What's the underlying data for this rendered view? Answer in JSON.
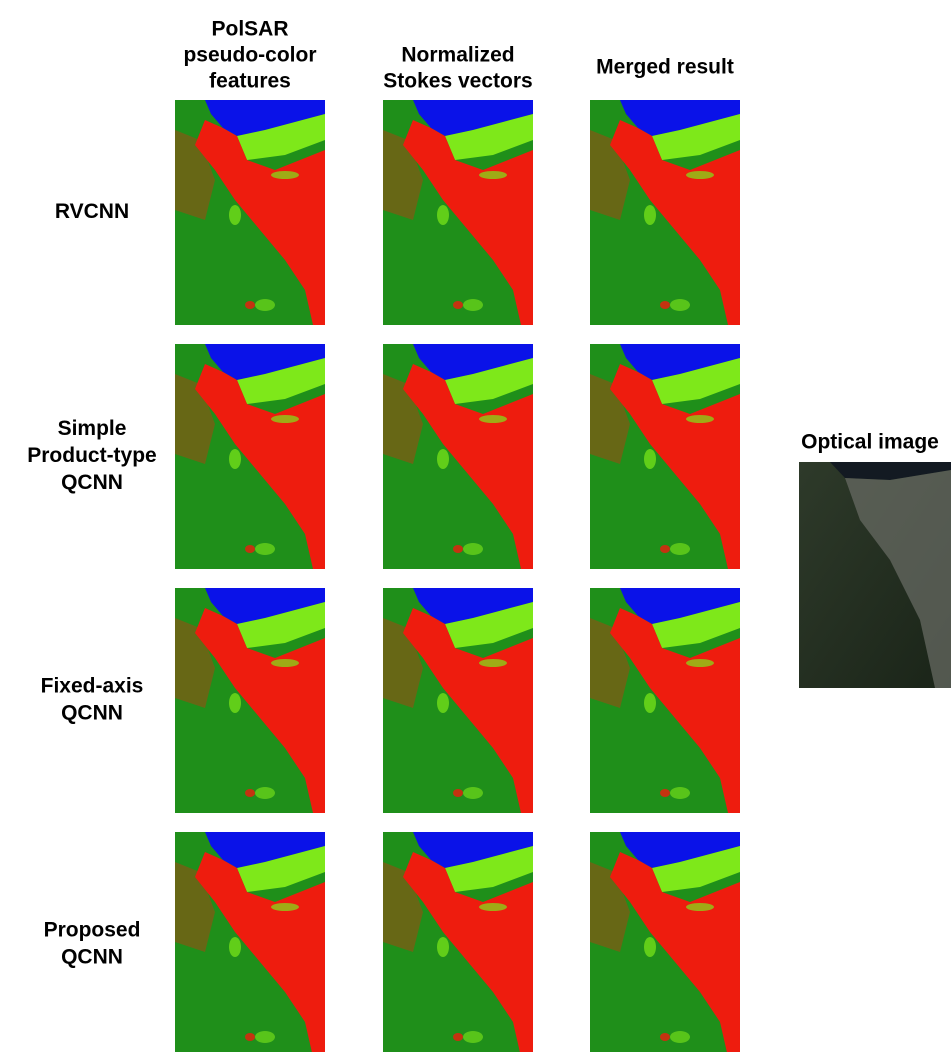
{
  "columns": [
    {
      "lines": [
        "PolSAR",
        "pseudo-color",
        "features"
      ]
    },
    {
      "lines": [
        "Normalized",
        "Stokes vectors"
      ]
    },
    {
      "lines": [
        "Merged result"
      ]
    }
  ],
  "rows": [
    {
      "lines": [
        "RVCNN"
      ]
    },
    {
      "lines": [
        "Simple",
        "Product-type",
        "QCNN"
      ]
    },
    {
      "lines": [
        "Fixed-axis",
        "QCNN"
      ]
    },
    {
      "lines": [
        "Proposed",
        "QCNN"
      ]
    }
  ],
  "optical": {
    "label": "Optical image"
  }
}
